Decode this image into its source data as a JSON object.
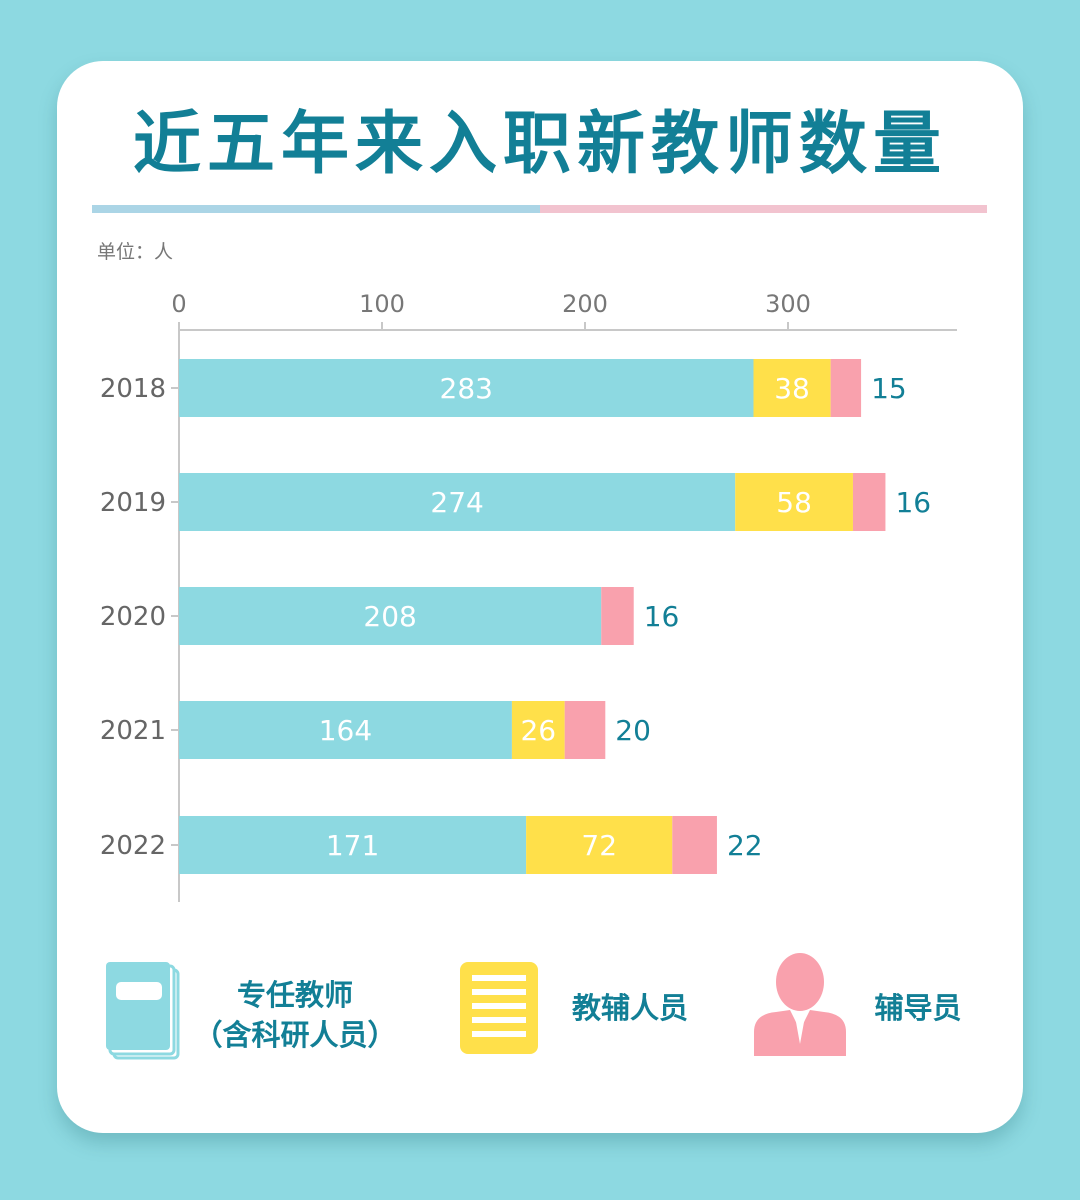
{
  "title": "近五年来入职新教师数量",
  "unit_label": "单位：人",
  "colors": {
    "background": "#8dd9e1",
    "title": "#127f96",
    "full_time": "#8dd9e1",
    "assistant": "#ffe04a",
    "counselor": "#f9a1ad"
  },
  "legend": {
    "full_time_line1": "专任教师",
    "full_time_line2": "（含科研人员）",
    "assistant": "教辅人员",
    "counselor": "辅导员",
    "full_time_icon": "book-icon",
    "assistant_icon": "document-icon",
    "counselor_icon": "person-icon"
  },
  "chart_data": {
    "type": "bar",
    "orientation": "horizontal",
    "stacked": true,
    "title": "近五年来入职新教师数量",
    "unit": "人",
    "categories": [
      "2018",
      "2019",
      "2020",
      "2021",
      "2022"
    ],
    "series": [
      {
        "name": "专任教师（含科研人员）",
        "values": [
          283,
          274,
          208,
          164,
          171
        ],
        "color": "#8dd9e1"
      },
      {
        "name": "教辅人员",
        "values": [
          38,
          58,
          null,
          26,
          72
        ],
        "color": "#ffe04a"
      },
      {
        "name": "辅导员",
        "values": [
          15,
          16,
          16,
          20,
          22
        ],
        "color": "#f9a1ad"
      }
    ],
    "x_ticks": [
      0,
      100,
      200,
      300
    ],
    "xlim": [
      0,
      380
    ],
    "axis_position": "top",
    "grid": false
  }
}
